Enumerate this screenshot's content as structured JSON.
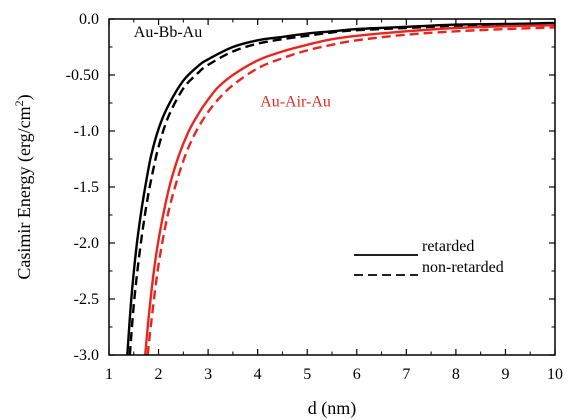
{
  "chart_data": {
    "type": "line",
    "xlabel": "d (nm)",
    "ylabel_main": "Casimir Energy (erg/cm",
    "ylabel_sup": "2",
    "ylabel_close": ")",
    "xlim": [
      1,
      10
    ],
    "ylim": [
      -3.0,
      0.0
    ],
    "x_ticks": [
      1,
      2,
      3,
      4,
      5,
      6,
      7,
      8,
      9,
      10
    ],
    "x_tick_labels": [
      "1",
      "2",
      "3",
      "4",
      "5",
      "6",
      "7",
      "8",
      "9",
      "10"
    ],
    "y_ticks": [
      0.0,
      -0.5,
      -1.0,
      -1.5,
      -2.0,
      -2.5,
      -3.0
    ],
    "y_tick_labels": [
      "0.0",
      "-0.50",
      "-1.0",
      "-1.5",
      "-2.0",
      "-2.5",
      "-3.0"
    ],
    "grid": false,
    "series": [
      {
        "group": "Au-Bb-Au",
        "kind": "retarded",
        "color": "#000000",
        "dash": "solid",
        "x": [
          1.37,
          1.45,
          1.55,
          1.65,
          1.75,
          1.85,
          2.0,
          2.2,
          2.5,
          2.8,
          3.0,
          3.5,
          4.0,
          4.5,
          5.0,
          5.5,
          6.0,
          7.0,
          8.0,
          9.0,
          10.0
        ],
        "y": [
          -3.0,
          -2.5,
          -2.05,
          -1.72,
          -1.45,
          -1.22,
          -0.98,
          -0.77,
          -0.55,
          -0.42,
          -0.36,
          -0.25,
          -0.19,
          -0.16,
          -0.13,
          -0.11,
          -0.09,
          -0.07,
          -0.05,
          -0.045,
          -0.035
        ]
      },
      {
        "group": "Au-Bb-Au",
        "kind": "non-retarded",
        "color": "#000000",
        "dash": "dashed",
        "x": [
          1.42,
          1.5,
          1.6,
          1.7,
          1.8,
          1.9,
          2.0,
          2.2,
          2.5,
          2.8,
          3.0,
          3.5,
          4.0,
          4.5,
          5.0,
          5.5,
          6.0,
          7.0,
          8.0,
          9.0,
          10.0
        ],
        "y": [
          -3.0,
          -2.55,
          -2.15,
          -1.82,
          -1.55,
          -1.33,
          -1.14,
          -0.87,
          -0.62,
          -0.48,
          -0.41,
          -0.29,
          -0.22,
          -0.18,
          -0.15,
          -0.12,
          -0.1,
          -0.08,
          -0.06,
          -0.05,
          -0.04
        ]
      },
      {
        "group": "Au-Air-Au",
        "kind": "retarded",
        "color": "#e8251e",
        "dash": "solid",
        "x": [
          1.73,
          1.8,
          1.9,
          2.0,
          2.2,
          2.4,
          2.6,
          2.8,
          3.0,
          3.2,
          3.5,
          4.0,
          4.5,
          5.0,
          5.5,
          6.0,
          7.0,
          8.0,
          9.0,
          10.0
        ],
        "y": [
          -3.0,
          -2.67,
          -2.27,
          -1.97,
          -1.53,
          -1.23,
          -1.01,
          -0.85,
          -0.72,
          -0.61,
          -0.5,
          -0.37,
          -0.29,
          -0.23,
          -0.18,
          -0.15,
          -0.11,
          -0.08,
          -0.065,
          -0.055
        ]
      },
      {
        "group": "Au-Air-Au",
        "kind": "non-retarded",
        "color": "#e8251e",
        "dash": "dashed",
        "x": [
          1.78,
          1.85,
          1.95,
          2.05,
          2.2,
          2.4,
          2.6,
          2.8,
          3.0,
          3.2,
          3.5,
          4.0,
          4.5,
          5.0,
          5.5,
          6.0,
          7.0,
          8.0,
          9.0,
          10.0
        ],
        "y": [
          -3.0,
          -2.72,
          -2.35,
          -2.06,
          -1.72,
          -1.4,
          -1.15,
          -0.97,
          -0.83,
          -0.72,
          -0.59,
          -0.44,
          -0.35,
          -0.28,
          -0.23,
          -0.19,
          -0.14,
          -0.11,
          -0.09,
          -0.075
        ]
      }
    ],
    "annotations": [
      {
        "text": "Au-Bb-Au",
        "color": "#000000",
        "x": 1.5,
        "y": -0.16
      },
      {
        "text": "Au-Air-Au",
        "color": "#e8251e",
        "x": 4.05,
        "y": -0.78
      }
    ],
    "legend": {
      "position": "lower-right",
      "entries": [
        {
          "label": "retarded",
          "dash": "solid"
        },
        {
          "label": "non-retarded",
          "dash": "dashed"
        }
      ]
    }
  }
}
